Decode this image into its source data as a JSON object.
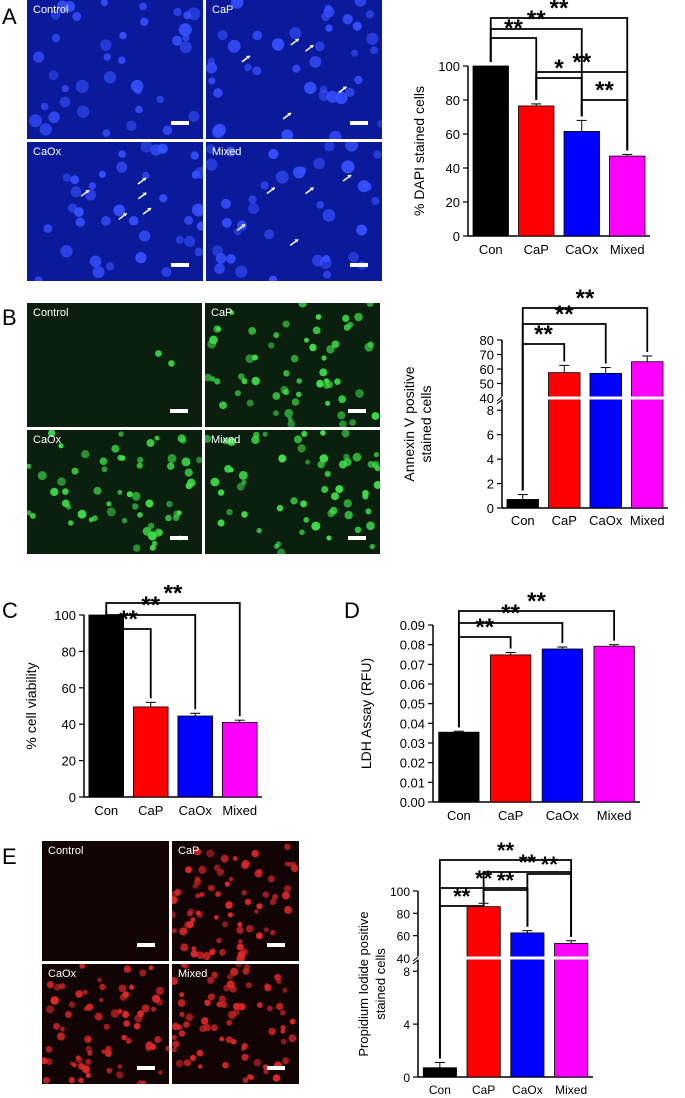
{
  "panels": [
    {
      "letter": "A"
    },
    {
      "letter": "B"
    },
    {
      "letter": "C"
    },
    {
      "letter": "D"
    },
    {
      "letter": "E"
    }
  ],
  "micrographs": {
    "A": [
      "Control",
      "CaP",
      "CaOx",
      "Mixed"
    ],
    "B": [
      "Control",
      "CaP",
      "CaOx",
      "Mixed"
    ],
    "E": [
      "Control",
      "CaP",
      "CaOx",
      "Mixed"
    ]
  },
  "colors": {
    "Con": "#000000",
    "CaP": "#ff0000",
    "CaOx": "#0000ff",
    "Mixed": "#ff00ff",
    "dapi_bg": "#0a1a9a",
    "annexin_bg": "#0b1f0e",
    "pi_bg": "#120304"
  },
  "significance_label": "**",
  "chart_data": [
    {
      "id": "A",
      "type": "bar",
      "categories": [
        "Con",
        "CaP",
        "CaOx",
        "Mixed"
      ],
      "values": [
        100,
        76.5,
        61.5,
        47
      ],
      "errors": [
        0,
        1.2,
        6.5,
        1
      ],
      "ylabel": "% DAPI stained cells",
      "ylim": [
        0,
        100
      ],
      "yticks": [
        "0",
        "20",
        "40",
        "60",
        "80",
        "100"
      ],
      "significance": [
        {
          "from": 0,
          "to": 1,
          "label": "**"
        },
        {
          "from": 0,
          "to": 2,
          "label": "**"
        },
        {
          "from": 0,
          "to": 3,
          "label": "**"
        },
        {
          "from": 1,
          "to": 2,
          "label": "*"
        },
        {
          "from": 1,
          "to": 3,
          "label": "**"
        },
        {
          "from": 2,
          "to": 3,
          "label": "**"
        }
      ]
    },
    {
      "id": "B",
      "type": "bar",
      "axis_break": true,
      "categories": [
        "Con",
        "CaP",
        "CaOx",
        "Mixed"
      ],
      "values": [
        0.7,
        57.5,
        57,
        65
      ],
      "errors": [
        0.4,
        5,
        4,
        4
      ],
      "ylabel": "Annexin V positive stained cells",
      "ylabel_lines": [
        "Annexin V positive",
        "stained cells"
      ],
      "yticks_low": [
        "0",
        "2",
        "4",
        "6",
        "8"
      ],
      "yticks_high": [
        "40",
        "50",
        "60",
        "70",
        "80"
      ],
      "significance": [
        {
          "from": 0,
          "to": 1,
          "label": "**"
        },
        {
          "from": 0,
          "to": 2,
          "label": "**"
        },
        {
          "from": 0,
          "to": 3,
          "label": "**"
        }
      ]
    },
    {
      "id": "C",
      "type": "bar",
      "categories": [
        "Con",
        "CaP",
        "CaOx",
        "Mixed"
      ],
      "values": [
        100,
        49.5,
        44.5,
        41
      ],
      "errors": [
        0,
        2.5,
        1.5,
        1.2
      ],
      "ylabel": "% cell viability",
      "ylim": [
        0,
        100
      ],
      "yticks": [
        "0",
        "20",
        "40",
        "60",
        "80",
        "100"
      ],
      "significance": [
        {
          "from": 0,
          "to": 1,
          "label": "**"
        },
        {
          "from": 0,
          "to": 2,
          "label": "**"
        },
        {
          "from": 0,
          "to": 3,
          "label": "**"
        }
      ]
    },
    {
      "id": "D",
      "type": "bar",
      "categories": [
        "Con",
        "CaP",
        "CaOx",
        "Mixed"
      ],
      "values": [
        0.0355,
        0.0748,
        0.0778,
        0.0792
      ],
      "errors": [
        0.0005,
        0.0012,
        0.001,
        0.0008
      ],
      "ylabel": "LDH Assay (RFU)",
      "ylim": [
        0,
        0.09
      ],
      "yticks": [
        "0.00",
        "0.01",
        "0.02",
        "0.03",
        "0.04",
        "0.05",
        "0.06",
        "0.07",
        "0.08",
        "0.09"
      ],
      "significance": [
        {
          "from": 0,
          "to": 1,
          "label": "**"
        },
        {
          "from": 0,
          "to": 2,
          "label": "**"
        },
        {
          "from": 0,
          "to": 3,
          "label": "**"
        }
      ]
    },
    {
      "id": "E",
      "type": "bar",
      "axis_break": true,
      "categories": [
        "Con",
        "CaP",
        "CaOx",
        "Mixed"
      ],
      "values": [
        0.7,
        86,
        62.5,
        53
      ],
      "errors": [
        0.4,
        3,
        2,
        2.5
      ],
      "ylabel": "Propidium Iodide positive stained cells",
      "ylabel_lines": [
        "Propidium Iodide positive",
        "stained cells"
      ],
      "yticks_low": [
        "0",
        "4",
        "8"
      ],
      "yticks_high": [
        "40",
        "60",
        "80",
        "100"
      ],
      "significance": [
        {
          "from": 0,
          "to": 1,
          "label": "**"
        },
        {
          "from": 0,
          "to": 2,
          "label": "**"
        },
        {
          "from": 0,
          "to": 3,
          "label": "**"
        },
        {
          "from": 1,
          "to": 2,
          "label": "**"
        },
        {
          "from": 1,
          "to": 3,
          "label": "**"
        },
        {
          "from": 2,
          "to": 3,
          "label": "**"
        }
      ]
    }
  ]
}
